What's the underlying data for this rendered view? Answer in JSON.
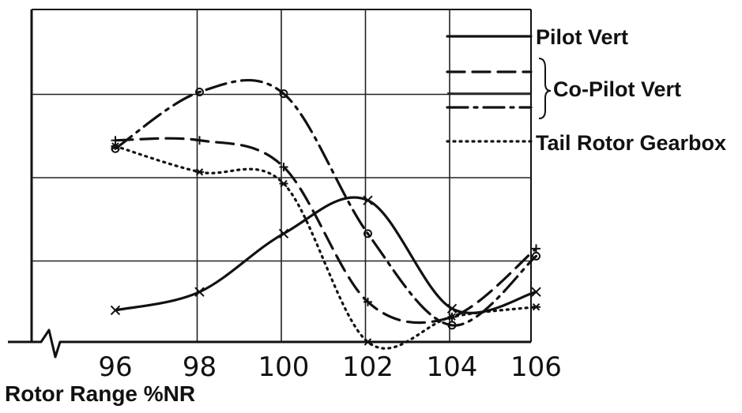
{
  "chart_data": {
    "type": "line",
    "xlabel": "Rotor Range %NR",
    "ylabel": "",
    "x": [
      96,
      98,
      100,
      102,
      104,
      106
    ],
    "xlim": [
      95,
      106.5
    ],
    "ylim": [
      0,
      4
    ],
    "grid": true,
    "legend_placement": "right",
    "legend_group_label": "Co-Pilot Vert",
    "series": [
      {
        "name": "Pilot Vert",
        "style": "solid",
        "marker": "x",
        "values": [
          0.38,
          0.6,
          1.3,
          1.7,
          0.4,
          0.6
        ]
      },
      {
        "name": "",
        "style": "dashed",
        "marker": "+",
        "values": [
          2.42,
          2.42,
          2.1,
          0.48,
          0.3,
          1.12
        ]
      },
      {
        "name": "",
        "style": "dashdot",
        "marker": "o",
        "values": [
          2.32,
          3.0,
          2.98,
          1.3,
          0.2,
          1.03
        ]
      },
      {
        "name": "Tail Rotor Gearbox",
        "style": "dotted",
        "marker": "*",
        "values": [
          2.35,
          2.04,
          1.9,
          0.0,
          0.3,
          0.42
        ]
      }
    ]
  },
  "colors": {
    "ink": "#111111",
    "grid": "#222222",
    "background": "#ffffff"
  }
}
